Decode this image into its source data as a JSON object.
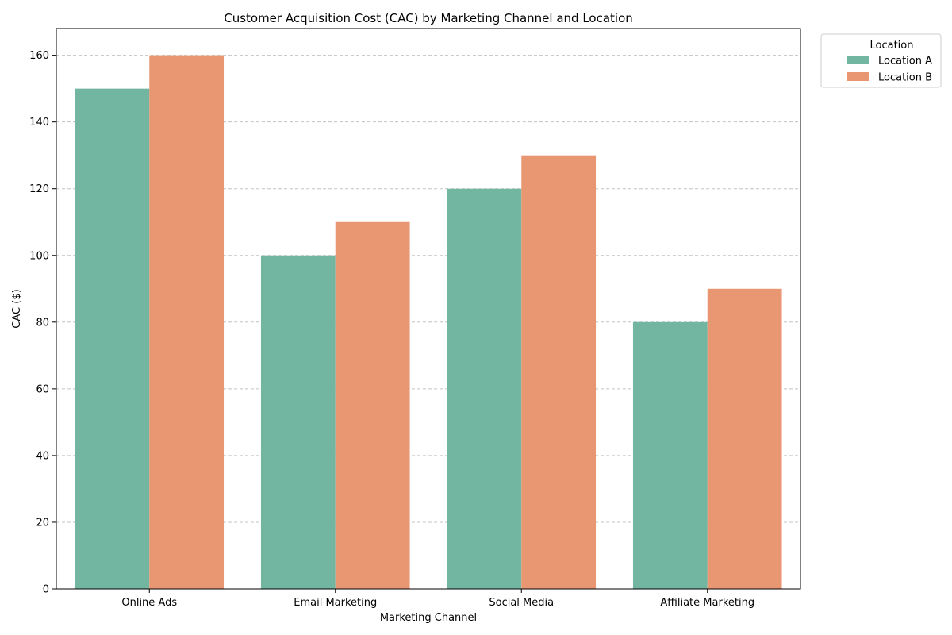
{
  "chart_data": {
    "type": "bar",
    "title": "Customer Acquisition Cost (CAC) by Marketing Channel and Location",
    "xlabel": "Marketing Channel",
    "ylabel": "CAC ($)",
    "categories": [
      "Online Ads",
      "Email Marketing",
      "Social Media",
      "Affiliate Marketing"
    ],
    "series": [
      {
        "name": "Location A",
        "values": [
          150,
          100,
          120,
          80
        ],
        "color": "#72b5a1"
      },
      {
        "name": "Location B",
        "values": [
          160,
          110,
          130,
          90
        ],
        "color": "#e99673"
      }
    ],
    "ylim": [
      0,
      168
    ],
    "yticks": [
      0,
      20,
      40,
      60,
      80,
      100,
      120,
      140,
      160
    ],
    "grid": "horizontal dashed",
    "legend": {
      "title": "Location",
      "placement": "outside top-right"
    }
  }
}
